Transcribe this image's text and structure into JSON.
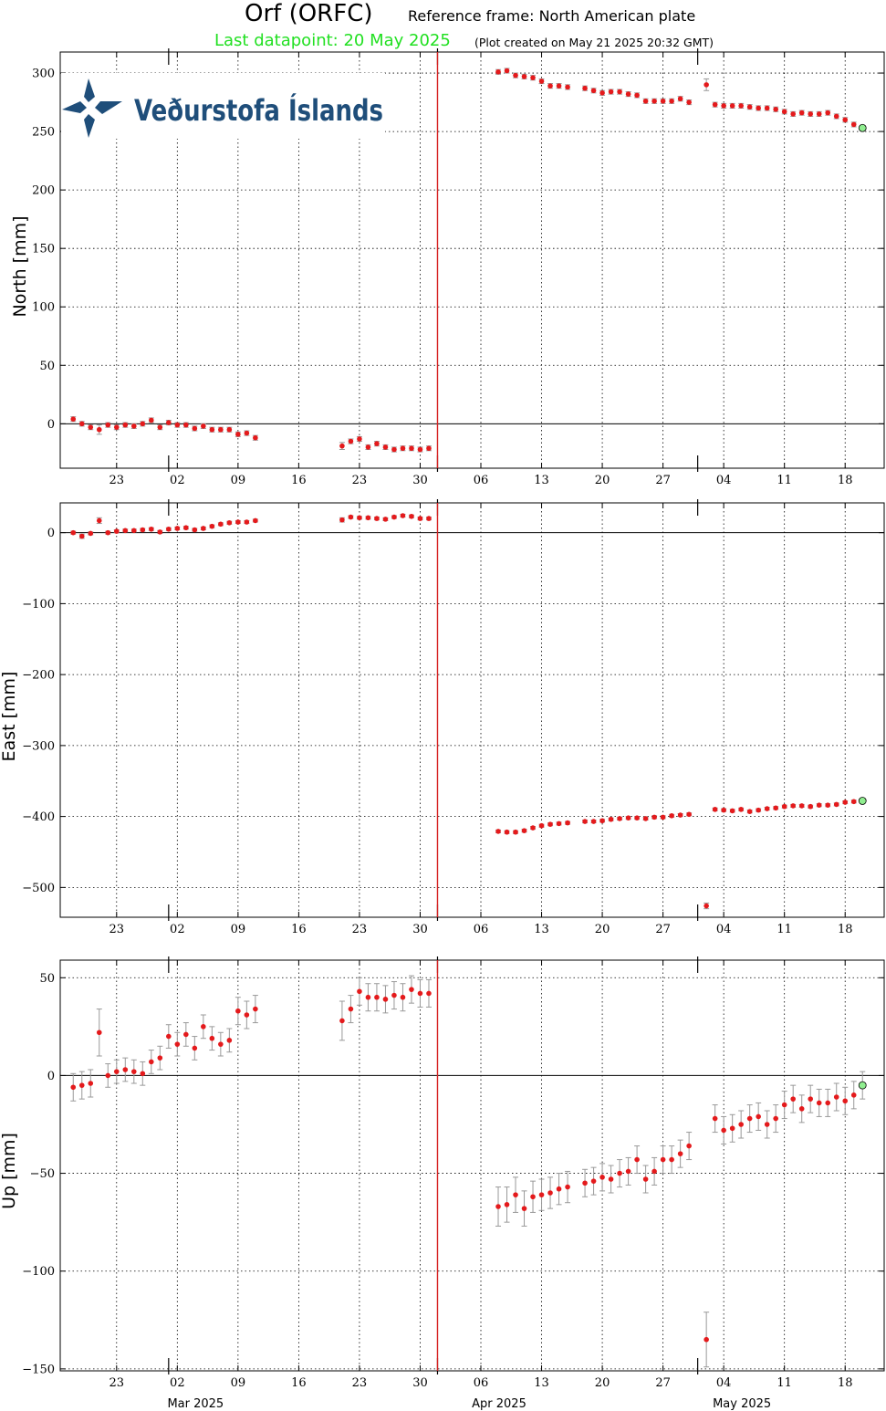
{
  "header": {
    "station": "Orf (ORFC)",
    "reference_frame": "Reference frame: North American plate",
    "last_datapoint": "Last datapoint: 20 May 2025",
    "created": "(Plot created on May 21 2025 20:32 GMT)"
  },
  "logo": {
    "text": "Veðurstofa Íslands",
    "color": "#1f4e7a"
  },
  "colors": {
    "points": "#e41a1c",
    "last_point": "#90ee90",
    "event_line": "#d62020",
    "errorbar": "#999999",
    "grid": "#000000"
  },
  "months": [
    "Mar 2025",
    "Apr 2025",
    "May 2025"
  ],
  "chart_data": [
    {
      "type": "scatter",
      "name": "north",
      "ylabel": "North [mm]",
      "ylim": [
        -38,
        318
      ],
      "yticks": [
        0,
        50,
        100,
        150,
        200,
        250,
        300
      ],
      "xlim": [
        "2025-02-16T12:00",
        "2025-05-22T12:00"
      ],
      "xticks": [
        "23",
        "02",
        "09",
        "16",
        "23",
        "30",
        "06",
        "13",
        "20",
        "27",
        "04",
        "11",
        "18"
      ],
      "xtick_dates": [
        "2025-02-23",
        "2025-03-02",
        "2025-03-09",
        "2025-03-16",
        "2025-03-23",
        "2025-03-30",
        "2025-04-06",
        "2025-04-13",
        "2025-04-20",
        "2025-04-27",
        "2025-05-04",
        "2025-05-11",
        "2025-05-18"
      ],
      "event_date": "2025-04-01",
      "grid": true,
      "x": [
        "2025-02-18",
        "2025-02-19",
        "2025-02-20",
        "2025-02-21",
        "2025-02-22",
        "2025-02-23",
        "2025-02-24",
        "2025-02-25",
        "2025-02-26",
        "2025-02-27",
        "2025-02-28",
        "2025-03-01",
        "2025-03-02",
        "2025-03-03",
        "2025-03-04",
        "2025-03-05",
        "2025-03-06",
        "2025-03-07",
        "2025-03-08",
        "2025-03-09",
        "2025-03-10",
        "2025-03-11",
        "2025-03-12",
        "2025-03-21",
        "2025-03-22",
        "2025-03-23",
        "2025-03-24",
        "2025-03-25",
        "2025-03-26",
        "2025-03-27",
        "2025-03-28",
        "2025-03-29",
        "2025-03-30",
        "2025-03-31",
        "2025-04-08",
        "2025-04-09",
        "2025-04-10",
        "2025-04-11",
        "2025-04-12",
        "2025-04-13",
        "2025-04-14",
        "2025-04-15",
        "2025-04-16",
        "2025-04-18",
        "2025-04-19",
        "2025-04-20",
        "2025-04-21",
        "2025-04-22",
        "2025-04-23",
        "2025-04-24",
        "2025-04-25",
        "2025-04-26",
        "2025-04-27",
        "2025-04-28",
        "2025-04-29",
        "2025-04-30",
        "2025-05-02",
        "2025-05-03",
        "2025-05-04",
        "2025-05-05",
        "2025-05-06",
        "2025-05-07",
        "2025-05-08",
        "2025-05-09",
        "2025-05-10",
        "2025-05-11",
        "2025-05-12",
        "2025-05-13",
        "2025-05-14",
        "2025-05-15",
        "2025-05-16",
        "2025-05-17",
        "2025-05-18",
        "2025-05-19",
        "2025-05-20"
      ],
      "y": [
        4,
        0,
        -3,
        -5,
        -1,
        -3,
        -1,
        -2,
        0,
        3,
        -3,
        1,
        -1,
        -1,
        -4,
        -2,
        -5,
        -5,
        -5,
        -9,
        -8,
        -12,
        null,
        -19,
        -15,
        -13,
        -20,
        -17,
        -20,
        -22,
        -21,
        -21,
        -22,
        -21,
        301,
        302,
        298,
        297,
        296,
        293,
        289,
        289,
        288,
        287,
        285,
        283,
        284,
        284,
        282,
        281,
        276,
        276,
        276,
        276,
        278,
        275,
        290,
        273,
        272,
        272,
        272,
        271,
        270,
        270,
        269,
        267,
        265,
        266,
        265,
        265,
        266,
        263,
        260,
        256,
        253
      ],
      "err": [
        2,
        2,
        2,
        4,
        2,
        2,
        2,
        2,
        2,
        2,
        2,
        2,
        2,
        2,
        2,
        2,
        2,
        2,
        2,
        2,
        2,
        2,
        null,
        3,
        2,
        2,
        2,
        2,
        2,
        2,
        2,
        2,
        2,
        2,
        2,
        2,
        2,
        2,
        2,
        2,
        2,
        2,
        2,
        2,
        2,
        2,
        2,
        2,
        2,
        2,
        2,
        2,
        2,
        2,
        2,
        2,
        5,
        2,
        2,
        2,
        2,
        2,
        2,
        2,
        2,
        2,
        2,
        2,
        2,
        2,
        2,
        2,
        2,
        2,
        2
      ]
    },
    {
      "type": "scatter",
      "name": "east",
      "ylabel": "East [mm]",
      "ylim": [
        -542,
        42
      ],
      "yticks": [
        0,
        -100,
        -200,
        -300,
        -400,
        -500
      ],
      "xlim": [
        "2025-02-16T12:00",
        "2025-05-22T12:00"
      ],
      "xticks": [
        "23",
        "02",
        "09",
        "16",
        "23",
        "30",
        "06",
        "13",
        "20",
        "27",
        "04",
        "11",
        "18"
      ],
      "xtick_dates": [
        "2025-02-23",
        "2025-03-02",
        "2025-03-09",
        "2025-03-16",
        "2025-03-23",
        "2025-03-30",
        "2025-04-06",
        "2025-04-13",
        "2025-04-20",
        "2025-04-27",
        "2025-05-04",
        "2025-05-11",
        "2025-05-18"
      ],
      "event_date": "2025-04-01",
      "grid": true,
      "x": [
        "2025-02-18",
        "2025-02-19",
        "2025-02-20",
        "2025-02-21",
        "2025-02-22",
        "2025-02-23",
        "2025-02-24",
        "2025-02-25",
        "2025-02-26",
        "2025-02-27",
        "2025-02-28",
        "2025-03-01",
        "2025-03-02",
        "2025-03-03",
        "2025-03-04",
        "2025-03-05",
        "2025-03-06",
        "2025-03-07",
        "2025-03-08",
        "2025-03-09",
        "2025-03-10",
        "2025-03-11",
        "2025-03-12",
        "2025-03-21",
        "2025-03-22",
        "2025-03-23",
        "2025-03-24",
        "2025-03-25",
        "2025-03-26",
        "2025-03-27",
        "2025-03-28",
        "2025-03-29",
        "2025-03-30",
        "2025-03-31",
        "2025-04-08",
        "2025-04-09",
        "2025-04-10",
        "2025-04-11",
        "2025-04-12",
        "2025-04-13",
        "2025-04-14",
        "2025-04-15",
        "2025-04-16",
        "2025-04-18",
        "2025-04-19",
        "2025-04-20",
        "2025-04-21",
        "2025-04-22",
        "2025-04-23",
        "2025-04-24",
        "2025-04-25",
        "2025-04-26",
        "2025-04-27",
        "2025-04-28",
        "2025-04-29",
        "2025-04-30",
        "2025-05-02",
        "2025-05-03",
        "2025-05-04",
        "2025-05-05",
        "2025-05-06",
        "2025-05-07",
        "2025-05-08",
        "2025-05-09",
        "2025-05-10",
        "2025-05-11",
        "2025-05-12",
        "2025-05-13",
        "2025-05-14",
        "2025-05-15",
        "2025-05-16",
        "2025-05-17",
        "2025-05-18",
        "2025-05-19",
        "2025-05-20"
      ],
      "y": [
        0,
        -5,
        -1,
        17,
        0,
        2,
        3,
        3,
        4,
        5,
        1,
        5,
        6,
        7,
        4,
        6,
        9,
        12,
        14,
        15,
        15,
        17,
        null,
        18,
        22,
        21,
        21,
        20,
        19,
        22,
        24,
        23,
        20,
        20,
        -421,
        -422,
        -422,
        -420,
        -416,
        -413,
        -411,
        -410,
        -409,
        -407,
        -407,
        -406,
        -404,
        -403,
        -402,
        -402,
        -403,
        -401,
        -401,
        -399,
        -398,
        -397,
        -526,
        -390,
        -391,
        -392,
        -390,
        -393,
        -391,
        -389,
        -388,
        -386,
        -385,
        -385,
        -386,
        -384,
        -384,
        -383,
        -380,
        -379,
        -378
      ],
      "err": [
        2,
        3,
        2,
        4,
        2,
        2,
        2,
        2,
        2,
        2,
        2,
        2,
        2,
        2,
        2,
        2,
        2,
        2,
        2,
        2,
        2,
        2,
        null,
        3,
        2,
        2,
        2,
        2,
        2,
        2,
        2,
        2,
        2,
        2,
        2,
        2,
        2,
        2,
        2,
        2,
        2,
        2,
        2,
        2,
        2,
        2,
        2,
        2,
        2,
        2,
        2,
        2,
        2,
        2,
        2,
        2,
        4,
        2,
        2,
        2,
        2,
        2,
        2,
        2,
        2,
        2,
        2,
        2,
        2,
        2,
        2,
        2,
        2,
        2,
        2
      ]
    },
    {
      "type": "scatter",
      "name": "up",
      "ylabel": "Up [mm]",
      "ylim": [
        -151,
        59
      ],
      "yticks": [
        50,
        0,
        -50,
        -100,
        -150
      ],
      "xlim": [
        "2025-02-16T12:00",
        "2025-05-22T12:00"
      ],
      "xticks": [
        "23",
        "02",
        "09",
        "16",
        "23",
        "30",
        "06",
        "13",
        "20",
        "27",
        "04",
        "11",
        "18"
      ],
      "xtick_dates": [
        "2025-02-23",
        "2025-03-02",
        "2025-03-09",
        "2025-03-16",
        "2025-03-23",
        "2025-03-30",
        "2025-04-06",
        "2025-04-13",
        "2025-04-20",
        "2025-04-27",
        "2025-05-04",
        "2025-05-11",
        "2025-05-18"
      ],
      "event_date": "2025-04-01",
      "grid": true,
      "x": [
        "2025-02-18",
        "2025-02-19",
        "2025-02-20",
        "2025-02-21",
        "2025-02-22",
        "2025-02-23",
        "2025-02-24",
        "2025-02-25",
        "2025-02-26",
        "2025-02-27",
        "2025-02-28",
        "2025-03-01",
        "2025-03-02",
        "2025-03-03",
        "2025-03-04",
        "2025-03-05",
        "2025-03-06",
        "2025-03-07",
        "2025-03-08",
        "2025-03-09",
        "2025-03-10",
        "2025-03-11",
        "2025-03-12",
        "2025-03-21",
        "2025-03-22",
        "2025-03-23",
        "2025-03-24",
        "2025-03-25",
        "2025-03-26",
        "2025-03-27",
        "2025-03-28",
        "2025-03-29",
        "2025-03-30",
        "2025-03-31",
        "2025-04-08",
        "2025-04-09",
        "2025-04-10",
        "2025-04-11",
        "2025-04-12",
        "2025-04-13",
        "2025-04-14",
        "2025-04-15",
        "2025-04-16",
        "2025-04-18",
        "2025-04-19",
        "2025-04-20",
        "2025-04-21",
        "2025-04-22",
        "2025-04-23",
        "2025-04-24",
        "2025-04-25",
        "2025-04-26",
        "2025-04-27",
        "2025-04-28",
        "2025-04-29",
        "2025-04-30",
        "2025-05-02",
        "2025-05-03",
        "2025-05-04",
        "2025-05-05",
        "2025-05-06",
        "2025-05-07",
        "2025-05-08",
        "2025-05-09",
        "2025-05-10",
        "2025-05-11",
        "2025-05-12",
        "2025-05-13",
        "2025-05-14",
        "2025-05-15",
        "2025-05-16",
        "2025-05-17",
        "2025-05-18",
        "2025-05-19",
        "2025-05-20"
      ],
      "y": [
        -6,
        -5,
        -4,
        22,
        0,
        2,
        3,
        2,
        1,
        7,
        9,
        20,
        16,
        21,
        14,
        25,
        19,
        16,
        18,
        33,
        31,
        34,
        null,
        28,
        34,
        43,
        40,
        40,
        39,
        41,
        40,
        44,
        42,
        42,
        -67,
        -66,
        -61,
        -68,
        -62,
        -61,
        -60,
        -58,
        -57,
        -55,
        -54,
        -52,
        -53,
        -50,
        -49,
        -43,
        -53,
        -49,
        -43,
        -43,
        -40,
        -36,
        -135,
        -22,
        -28,
        -27,
        -25,
        -22,
        -21,
        -25,
        -22,
        -15,
        -12,
        -17,
        -12,
        -14,
        -14,
        -11,
        -13,
        -10,
        -5
      ],
      "err": [
        7,
        7,
        7,
        12,
        6,
        6,
        6,
        6,
        6,
        6,
        6,
        6,
        6,
        6,
        6,
        6,
        6,
        6,
        6,
        7,
        7,
        7,
        null,
        10,
        7,
        7,
        7,
        7,
        7,
        7,
        7,
        7,
        7,
        7,
        10,
        9,
        9,
        9,
        8,
        8,
        8,
        8,
        8,
        7,
        7,
        7,
        7,
        7,
        7,
        7,
        7,
        7,
        7,
        7,
        7,
        7,
        14,
        7,
        7,
        7,
        7,
        7,
        7,
        7,
        7,
        7,
        7,
        7,
        7,
        7,
        7,
        7,
        7,
        7,
        7
      ]
    }
  ]
}
